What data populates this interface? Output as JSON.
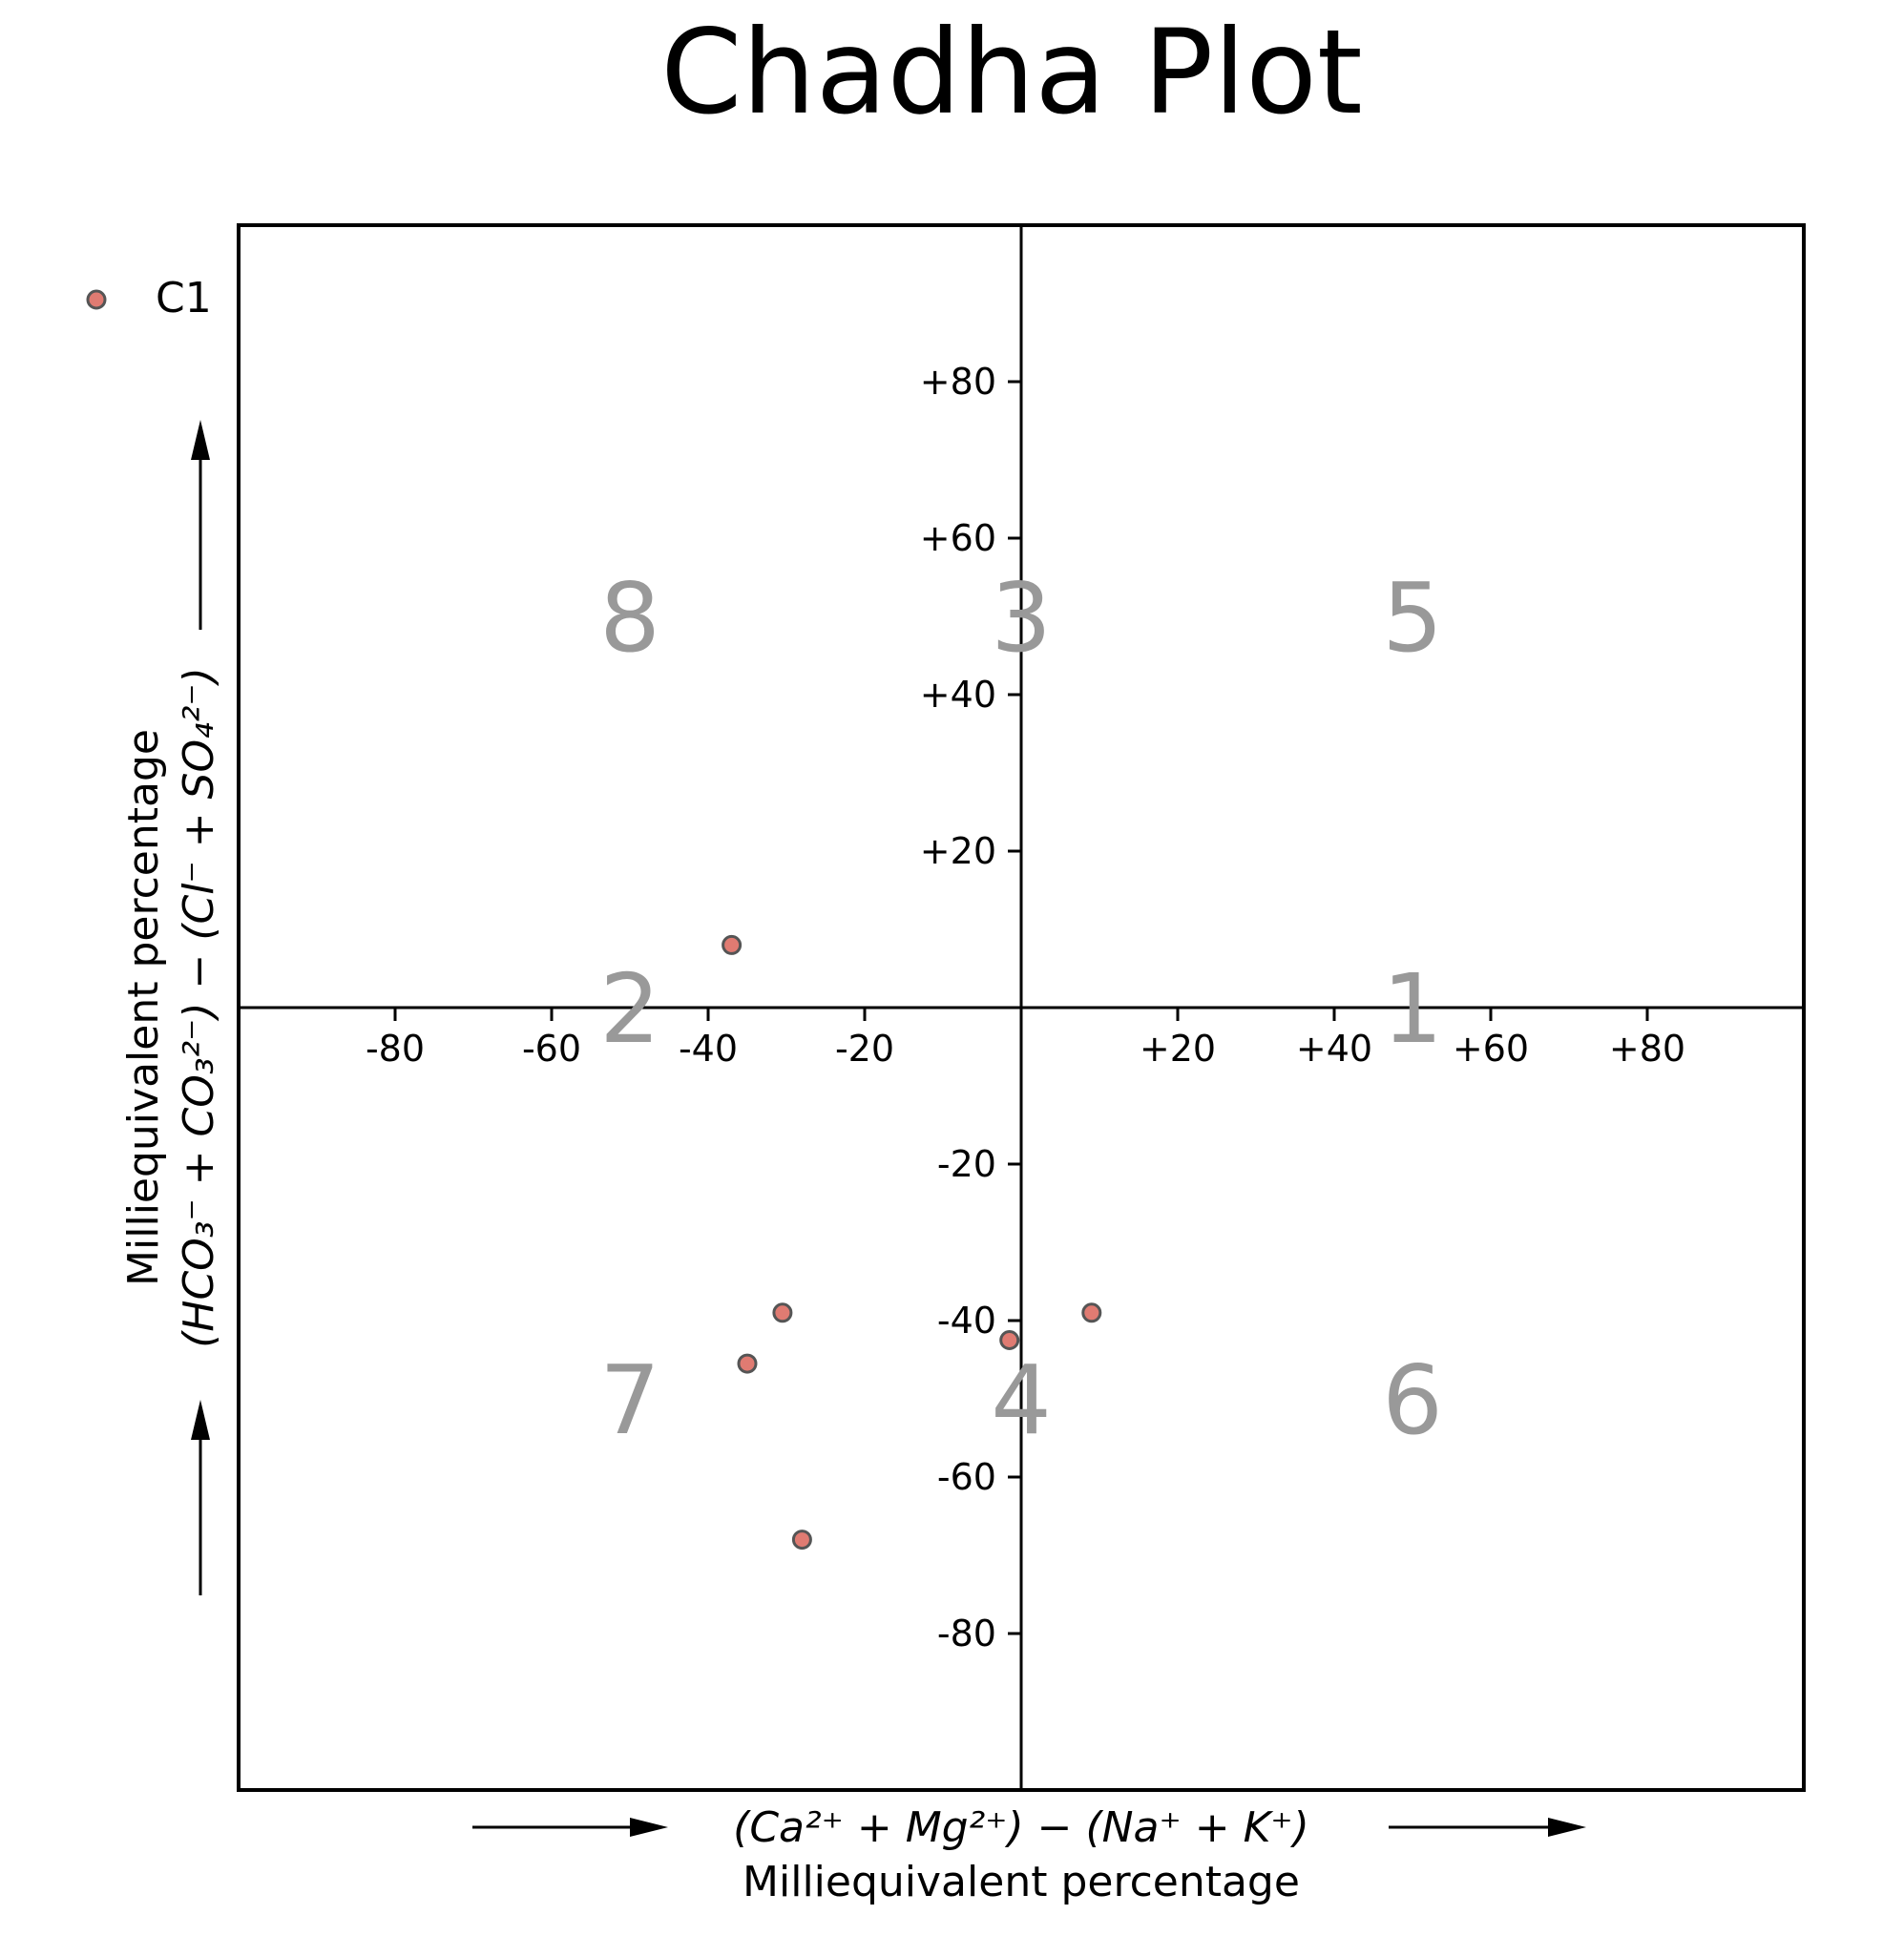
{
  "chart_data": {
    "type": "scatter",
    "title": "Chadha Plot",
    "xlabel_formula": "(Ca²⁺ + Mg²⁺) − (Na⁺ + K⁺)",
    "xlabel": "Milliequivalent percentage",
    "ylabel": "Milliequivalent percentage",
    "ylabel_formula": "(HCO₃⁻ + CO₃²⁻) − (Cl⁻ + SO₄²⁻)",
    "xlim": [
      -100,
      100
    ],
    "ylim": [
      -100,
      100
    ],
    "x_ticks": [
      -80,
      -60,
      -40,
      -20,
      20,
      40,
      60,
      80
    ],
    "y_ticks": [
      -80,
      -60,
      -40,
      -20,
      20,
      40,
      60,
      80
    ],
    "x_tick_labels": [
      "-80",
      "-60",
      "-40",
      "-20",
      "+20",
      "+40",
      "+60",
      "+80"
    ],
    "y_tick_labels": [
      "-80",
      "-60",
      "-40",
      "-20",
      "+20",
      "+40",
      "+60",
      "+80"
    ],
    "regions": [
      {
        "label": "1",
        "x": 50,
        "y": 0
      },
      {
        "label": "2",
        "x": -50,
        "y": 0
      },
      {
        "label": "3",
        "x": 0,
        "y": 50
      },
      {
        "label": "4",
        "x": 0,
        "y": -50
      },
      {
        "label": "5",
        "x": 50,
        "y": 50
      },
      {
        "label": "6",
        "x": 50,
        "y": -50
      },
      {
        "label": "7",
        "x": -50,
        "y": -50
      },
      {
        "label": "8",
        "x": -50,
        "y": 50
      }
    ],
    "series": [
      {
        "name": "C1",
        "color": "#e07b72",
        "edge_color": "#555555",
        "points": [
          {
            "x": -37,
            "y": 8
          },
          {
            "x": -30.5,
            "y": -39
          },
          {
            "x": -35,
            "y": -45.5
          },
          {
            "x": -28,
            "y": -68
          },
          {
            "x": -1.5,
            "y": -42.5
          },
          {
            "x": 9,
            "y": -39
          }
        ]
      }
    ],
    "legend": {
      "placement": "upper-left-outside",
      "entries": [
        "C1"
      ]
    }
  }
}
